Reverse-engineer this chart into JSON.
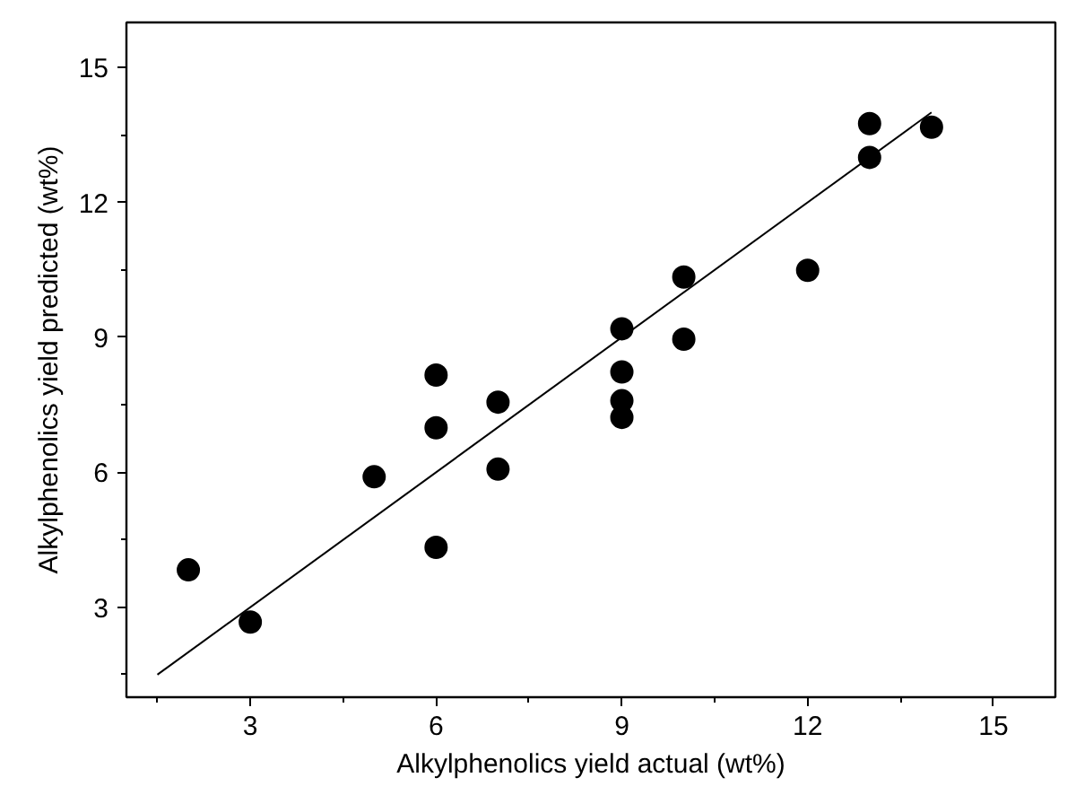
{
  "chart_data": {
    "type": "scatter",
    "xlabel": "Alkylphenolics yield actual (wt%)",
    "ylabel": "Alkylphenolics yield predicted (wt%)",
    "xlim": [
      1,
      16
    ],
    "ylim": [
      1,
      16
    ],
    "xticks": [
      3,
      6,
      9,
      12,
      15
    ],
    "yticks": [
      3,
      6,
      9,
      12,
      15
    ],
    "grid": false,
    "marker": "circle",
    "series": [
      {
        "color": "#000000",
        "x": [
          2,
          3,
          5,
          6,
          6,
          6,
          7,
          7,
          9,
          9,
          9,
          9,
          10,
          10,
          12,
          13,
          13,
          14
        ],
        "values": [
          3.83,
          2.67,
          5.9,
          8.16,
          6.99,
          4.33,
          7.56,
          6.07,
          9.19,
          8.23,
          7.59,
          7.22,
          10.34,
          8.96,
          10.49,
          13.75,
          13.0,
          13.67
        ]
      },
      {
        "type": "line",
        "color": "#000000",
        "line_style": "solid",
        "marker": "none",
        "x": [
          1.5,
          14
        ],
        "values": [
          1.5,
          14
        ]
      }
    ]
  }
}
